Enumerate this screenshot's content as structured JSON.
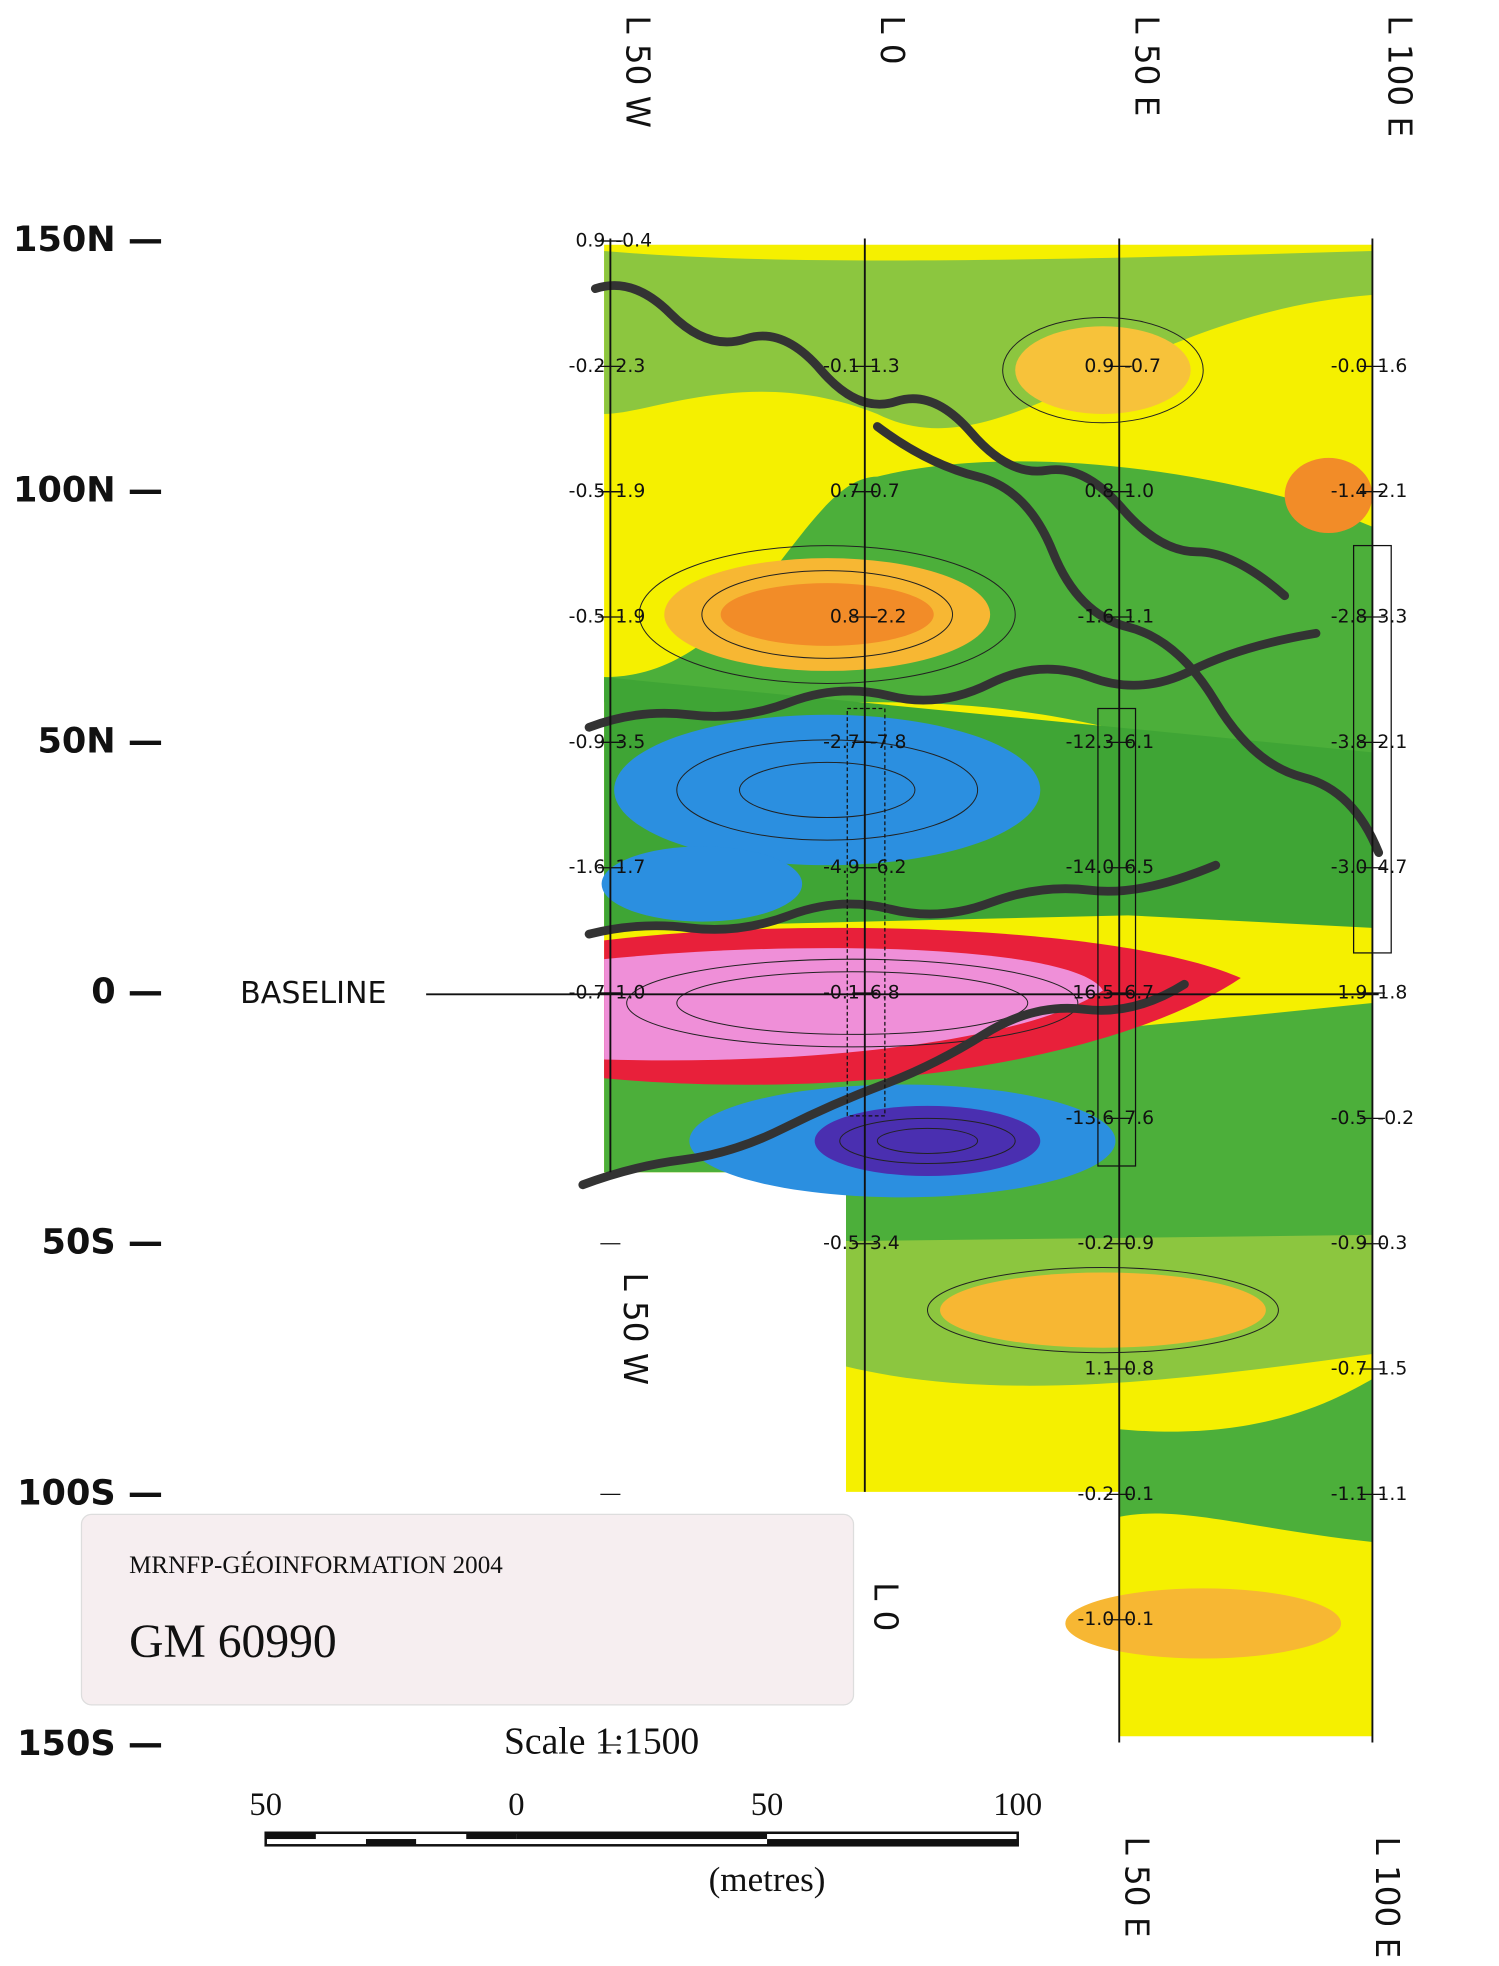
{
  "map": {
    "top_line_labels": [
      "L 50 W",
      "L 0",
      "L 50 E",
      "L 100 E"
    ],
    "bottom_line_labels": [
      "L 50 W",
      "L 0",
      "L 50 E",
      "L 100 E"
    ],
    "northing_labels": [
      "150N —",
      "100N —",
      "50N —",
      "0 —",
      "50S —",
      "100S —",
      "150S —"
    ],
    "baseline_label": "BASELINE",
    "readings": [
      {
        "line": "L 50 W",
        "rows": [
          [
            "0.9",
            "-0.4"
          ],
          [
            "-0.2",
            "2.3"
          ],
          [
            "-0.5",
            "1.9"
          ],
          [
            "-0.5",
            "1.9"
          ],
          [
            "-0.9",
            "3.5"
          ],
          [
            "-1.6",
            "1.7"
          ],
          [
            "-0.7",
            "1.0"
          ]
        ]
      },
      {
        "line": "L 0",
        "rows": [
          null,
          [
            "-0.1",
            "1.3"
          ],
          [
            "0.7",
            "0.7"
          ],
          [
            "0.8",
            "-2.2"
          ],
          [
            "-2.7",
            "-7.8"
          ],
          [
            "-4.9",
            "-6.2"
          ],
          [
            "-0.1",
            "6.8"
          ],
          null,
          [
            "-0.5",
            "3.4"
          ]
        ]
      },
      {
        "line": "L 50 E",
        "rows": [
          null,
          [
            "0.9",
            "-0.7"
          ],
          [
            "0.8",
            "1.0"
          ],
          [
            "-1.6",
            "1.1"
          ],
          [
            "-12.3",
            "6.1"
          ],
          [
            "-14.0",
            "6.5"
          ],
          [
            "16.5",
            "6.7"
          ],
          [
            "-13.6",
            "7.6"
          ],
          [
            "-0.2",
            "0.9"
          ],
          [
            "1.1",
            "0.8"
          ],
          [
            "-0.2",
            "0.1"
          ],
          [
            "-1.0",
            "0.1"
          ]
        ]
      },
      {
        "line": "L 100 E",
        "rows": [
          null,
          [
            "-0.0",
            "1.6"
          ],
          [
            "-1.4",
            "2.1"
          ],
          [
            "-2.8",
            "3.3"
          ],
          [
            "-3.8",
            "2.1"
          ],
          [
            "-3.0",
            "4.7"
          ],
          [
            "1.9",
            "1.8"
          ],
          [
            "-0.5",
            "-0.2"
          ],
          [
            "-0.9",
            "0.3"
          ],
          [
            "-0.7",
            "1.5"
          ],
          [
            "-1.1",
            "1.1"
          ]
        ]
      }
    ],
    "stamp": {
      "agency": "MRNFP-GÉOINFORMATION  2004",
      "document_id": "GM 60990"
    },
    "scale": {
      "title": "Scale 1:1500",
      "ticks": [
        "50",
        "0",
        "50",
        "100"
      ],
      "unit": "(metres)"
    }
  }
}
